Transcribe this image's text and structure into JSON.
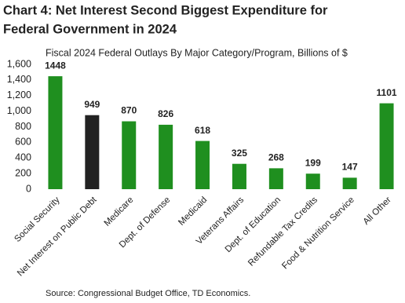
{
  "chart_data": {
    "type": "bar",
    "title": [
      "Chart 4: Net Interest Second Biggest Expenditure for",
      "Federal Government in 2024"
    ],
    "subtitle": "Fiscal 2024 Federal Outlays By Major Category/Program, Billions of $",
    "categories": [
      "Social Security",
      "Net Interest on Public Debt",
      "Medicare",
      "Dept. of Defense",
      "Medicaid",
      "Veterans Affairs",
      "Dept. of Education",
      "Refundable Tax Credits",
      "Food & Nutrition Service",
      "All Other"
    ],
    "values": [
      1448,
      949,
      870,
      826,
      618,
      325,
      268,
      199,
      147,
      1101
    ],
    "colors": [
      "#1f8f1f",
      "#222222",
      "#1f8f1f",
      "#1f8f1f",
      "#1f8f1f",
      "#1f8f1f",
      "#1f8f1f",
      "#1f8f1f",
      "#1f8f1f",
      "#1f8f1f"
    ],
    "ylim": [
      0,
      1600
    ],
    "yticks": [
      0,
      200,
      400,
      600,
      800,
      {
        "value": 1000,
        "label": "1,000"
      },
      {
        "value": 1200,
        "label": "1,200"
      },
      {
        "value": 1400,
        "label": "1,400"
      },
      {
        "value": 1600,
        "label": "1,600"
      }
    ],
    "grid": false,
    "source": "Source:  Congressional  Budget  Office,  TD Economics."
  }
}
